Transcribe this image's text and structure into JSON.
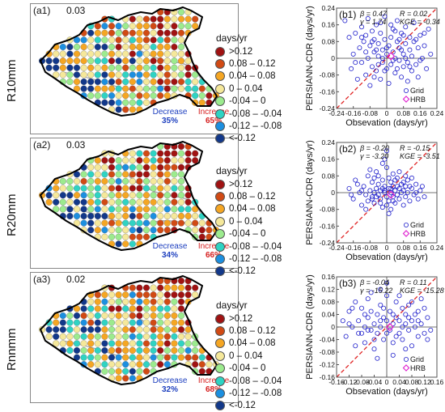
{
  "colors": {
    "scale": [
      "#a01212",
      "#d14a14",
      "#f5a623",
      "#f5e89a",
      "#9ceb8e",
      "#2fd3c3",
      "#1c8fe0",
      "#12388a"
    ],
    "grid_point": "#2222cc",
    "hrb_point": "#e020d0",
    "one_to_one": "#e02020",
    "basin_outline": "#000000",
    "rivers": "#aaaaaa"
  },
  "legend": {
    "title": "days/yr",
    "items": [
      ">0.12",
      "0.08 – 0.12",
      "0.04 – 0.08",
      "0 – 0.04",
      "-0.04 – 0",
      "-0.08 – -0.04",
      "-0.12 – -0.08",
      "<-0.12"
    ]
  },
  "maps": [
    {
      "label": "(a1)",
      "value": "0.03",
      "row_label": "R10mm",
      "decrease_label": "Decrease",
      "decrease_pct": "35%",
      "increase_label": "Increase",
      "increase_pct": "65%"
    },
    {
      "label": "(a2)",
      "value": "0.03",
      "row_label": "R20mm",
      "decrease_label": "Decrease",
      "decrease_pct": "34%",
      "increase_label": "Increase",
      "increase_pct": "66%"
    },
    {
      "label": "(a3)",
      "value": "0.02",
      "row_label": "Rnnmm",
      "decrease_label": "Decrease",
      "decrease_pct": "32%",
      "increase_label": "Increase",
      "increase_pct": "68%"
    }
  ],
  "chart_data": [
    {
      "type": "scatter",
      "label": "(b1)",
      "xlabel": "Obsevation (days/yr)",
      "ylabel": "PERSIANN-CDR (days/yr)",
      "xlim": [
        -0.24,
        0.24
      ],
      "ylim": [
        -0.24,
        0.24
      ],
      "xticks": [
        "-0.24",
        "-0.16",
        "-0.08",
        "0",
        "0.08",
        "0.16",
        "0.24"
      ],
      "yticks": [
        "0.24",
        "0.16",
        "0.08",
        "0",
        "-0.08",
        "-0.16",
        "-0.24"
      ],
      "stats_left": [
        "β = 0.47",
        "γ = 1.74"
      ],
      "stats_right": [
        "R = 0.02",
        "KGE = -0.34"
      ],
      "legend": [
        "Grid",
        "HRB"
      ],
      "hrb_point": [
        0.02,
        0.01
      ],
      "grid_points": [
        [
          -0.2,
          0.18
        ],
        [
          -0.18,
          0.1
        ],
        [
          -0.17,
          -0.05
        ],
        [
          -0.16,
          0.02
        ],
        [
          -0.15,
          0.12
        ],
        [
          -0.14,
          -0.1
        ],
        [
          -0.13,
          0.05
        ],
        [
          -0.12,
          0.15
        ],
        [
          -0.12,
          -0.02
        ],
        [
          -0.11,
          0.08
        ],
        [
          -0.1,
          -0.08
        ],
        [
          -0.1,
          0.11
        ],
        [
          -0.09,
          0.0
        ],
        [
          -0.09,
          0.19
        ],
        [
          -0.08,
          0.06
        ],
        [
          -0.08,
          -0.13
        ],
        [
          -0.07,
          0.13
        ],
        [
          -0.07,
          -0.04
        ],
        [
          -0.06,
          0.03
        ],
        [
          -0.06,
          0.09
        ],
        [
          -0.05,
          -0.06
        ],
        [
          -0.05,
          0.16
        ],
        [
          -0.04,
          0.01
        ],
        [
          -0.04,
          0.07
        ],
        [
          -0.03,
          -0.1
        ],
        [
          -0.03,
          0.12
        ],
        [
          -0.02,
          0.04
        ],
        [
          -0.02,
          -0.02
        ],
        [
          -0.01,
          0.09
        ],
        [
          -0.01,
          0.2
        ],
        [
          0.0,
          -0.05
        ],
        [
          0.0,
          0.02
        ],
        [
          0.01,
          0.06
        ],
        [
          0.01,
          -0.12
        ],
        [
          0.02,
          0.1
        ],
        [
          0.02,
          -0.03
        ],
        [
          0.03,
          0.03
        ],
        [
          0.03,
          0.14
        ],
        [
          0.04,
          -0.07
        ],
        [
          0.04,
          0.0
        ],
        [
          0.05,
          0.08
        ],
        [
          0.05,
          0.18
        ],
        [
          0.06,
          -0.01
        ],
        [
          0.06,
          0.05
        ],
        [
          0.07,
          -0.09
        ],
        [
          0.07,
          0.12
        ],
        [
          0.08,
          0.02
        ],
        [
          0.08,
          -0.04
        ],
        [
          0.09,
          0.07
        ],
        [
          0.09,
          0.15
        ],
        [
          0.1,
          -0.02
        ],
        [
          0.1,
          -0.11
        ],
        [
          0.11,
          0.04
        ],
        [
          0.11,
          0.1
        ],
        [
          0.12,
          -0.06
        ],
        [
          0.12,
          0.01
        ],
        [
          0.13,
          0.08
        ],
        [
          0.13,
          0.17
        ],
        [
          0.14,
          -0.03
        ],
        [
          0.15,
          0.05
        ],
        [
          0.15,
          -0.09
        ],
        [
          0.16,
          0.11
        ],
        [
          0.17,
          0.0
        ],
        [
          0.18,
          0.06
        ],
        [
          0.19,
          -0.05
        ],
        [
          0.2,
          0.14
        ],
        [
          0.21,
          0.02
        ],
        [
          -0.02,
          0.0
        ],
        [
          0.0,
          0.05
        ],
        [
          0.03,
          -0.01
        ],
        [
          -0.05,
          0.04
        ],
        [
          0.06,
          0.09
        ],
        [
          -0.01,
          -0.06
        ],
        [
          0.09,
          0.0
        ],
        [
          -0.07,
          0.08
        ],
        [
          0.04,
          0.13
        ],
        [
          0.11,
          -0.04
        ],
        [
          -0.1,
          0.03
        ],
        [
          0.14,
          0.09
        ],
        [
          -0.03,
          0.17
        ],
        [
          0.07,
          0.04
        ],
        [
          -0.06,
          -0.09
        ],
        [
          0.16,
          -0.01
        ],
        [
          0.02,
          0.16
        ],
        [
          -0.12,
          0.1
        ],
        [
          0.18,
          0.12
        ],
        [
          -0.04,
          -0.03
        ],
        [
          0.08,
          0.11
        ],
        [
          -0.15,
          -0.02
        ],
        [
          0.05,
          -0.05
        ]
      ]
    },
    {
      "type": "scatter",
      "label": "(b2)",
      "xlabel": "Obsevation (days/yr)",
      "ylabel": "PERSIANN-CDR (days/yr)",
      "xlim": [
        -0.24,
        0.24
      ],
      "ylim": [
        -0.24,
        0.24
      ],
      "xticks": [
        "-0.24",
        "-0.16",
        "-0.08",
        "0",
        "0.08",
        "0.16",
        "0.24"
      ],
      "yticks": [
        "0.24",
        "0.16",
        "0.08",
        "0",
        "-0.08",
        "-0.16",
        "-0.24"
      ],
      "stats_left": [
        "β = -0.20",
        "γ = -3.20"
      ],
      "stats_right": [
        "R = -0.15",
        "KGE = -3.51"
      ],
      "legend": [
        "Grid",
        "HRB"
      ],
      "hrb_point": [
        0.02,
        -0.01
      ],
      "grid_points": [
        [
          -0.18,
          0.02
        ],
        [
          -0.16,
          -0.03
        ],
        [
          -0.15,
          0.06
        ],
        [
          -0.13,
          0.0
        ],
        [
          -0.12,
          -0.06
        ],
        [
          -0.11,
          0.03
        ],
        [
          -0.1,
          -0.01
        ],
        [
          -0.09,
          0.08
        ],
        [
          -0.09,
          -0.04
        ],
        [
          -0.08,
          0.01
        ],
        [
          -0.07,
          -0.02
        ],
        [
          -0.07,
          0.05
        ],
        [
          -0.06,
          0.0
        ],
        [
          -0.06,
          -0.05
        ],
        [
          -0.05,
          0.02
        ],
        [
          -0.05,
          0.1
        ],
        [
          -0.04,
          -0.01
        ],
        [
          -0.04,
          0.04
        ],
        [
          -0.03,
          -0.03
        ],
        [
          -0.03,
          0.01
        ],
        [
          -0.02,
          0.06
        ],
        [
          -0.02,
          -0.07
        ],
        [
          -0.01,
          0.0
        ],
        [
          -0.01,
          0.03
        ],
        [
          0.0,
          -0.02
        ],
        [
          0.0,
          0.12
        ],
        [
          0.01,
          0.02
        ],
        [
          0.01,
          -0.04
        ],
        [
          0.02,
          0.05
        ],
        [
          0.02,
          0.0
        ],
        [
          0.03,
          -0.02
        ],
        [
          0.03,
          0.03
        ],
        [
          0.04,
          -0.05
        ],
        [
          0.04,
          0.01
        ],
        [
          0.05,
          0.07
        ],
        [
          0.05,
          -0.01
        ],
        [
          0.06,
          0.02
        ],
        [
          0.06,
          -0.03
        ],
        [
          0.07,
          0.0
        ],
        [
          0.07,
          0.04
        ],
        [
          0.08,
          -0.06
        ],
        [
          0.08,
          0.01
        ],
        [
          0.09,
          0.03
        ],
        [
          0.09,
          -0.02
        ],
        [
          0.1,
          0.06
        ],
        [
          0.1,
          0.0
        ],
        [
          0.11,
          -0.04
        ],
        [
          0.12,
          0.02
        ],
        [
          0.13,
          -0.01
        ],
        [
          0.14,
          0.04
        ],
        [
          0.15,
          -0.03
        ],
        [
          0.16,
          0.01
        ],
        [
          0.18,
          -0.02
        ],
        [
          -0.01,
          0.16
        ],
        [
          0.0,
          0.2
        ],
        [
          -0.02,
          0.14
        ],
        [
          0.01,
          -0.1
        ],
        [
          -0.04,
          0.08
        ],
        [
          0.03,
          0.09
        ],
        [
          -0.08,
          0.11
        ],
        [
          0.06,
          0.1
        ],
        [
          -0.14,
          0.04
        ],
        [
          0.12,
          0.07
        ],
        [
          -0.1,
          -0.08
        ],
        [
          0.02,
          -0.08
        ],
        [
          -0.06,
          0.07
        ],
        [
          0.04,
          0.06
        ],
        [
          -0.03,
          -0.05
        ],
        [
          0.08,
          0.05
        ],
        [
          -0.12,
          0.01
        ],
        [
          0.11,
          0.03
        ],
        [
          -0.07,
          -0.03
        ],
        [
          0.05,
          0.03
        ],
        [
          0.0,
          -0.06
        ],
        [
          -0.05,
          -0.02
        ],
        [
          0.09,
          0.08
        ],
        [
          0.14,
          0.0
        ],
        [
          -0.17,
          -0.01
        ],
        [
          0.17,
          0.03
        ],
        [
          -0.01,
          0.01
        ],
        [
          0.02,
          0.02
        ],
        [
          -0.02,
          0.02
        ],
        [
          0.03,
          -0.04
        ],
        [
          0.01,
          0.07
        ]
      ]
    },
    {
      "type": "scatter",
      "label": "(b3)",
      "xlabel": "Obsevation (days/yr)",
      "ylabel": "PERSIANN-CDR (days/yr)",
      "xlim": [
        -0.16,
        0.16
      ],
      "ylim": [
        -0.16,
        0.16
      ],
      "xticks": [
        "-0.16",
        "-0.12",
        "-0.08",
        "-0.04",
        "0",
        "0.04",
        "0.08",
        "0.12",
        "0.16"
      ],
      "yticks": [
        "0.16",
        "0.12",
        "0.08",
        "0.04",
        "0",
        "-0.04",
        "-0.08",
        "-0.12",
        "-0.16"
      ],
      "stats_left": [
        "β = -0.04",
        "γ = -15.22"
      ],
      "stats_right": [
        "R = 0.11",
        "KGE = -15.28"
      ],
      "legend": [
        "Grid",
        "HRB"
      ],
      "hrb_point": [
        0.01,
        0.0
      ],
      "grid_points": [
        [
          -0.14,
          0.02
        ],
        [
          -0.13,
          -0.03
        ],
        [
          -0.12,
          0.05
        ],
        [
          -0.11,
          0.0
        ],
        [
          -0.1,
          -0.06
        ],
        [
          -0.1,
          0.08
        ],
        [
          -0.09,
          0.02
        ],
        [
          -0.08,
          -0.02
        ],
        [
          -0.08,
          0.06
        ],
        [
          -0.07,
          0.0
        ],
        [
          -0.07,
          -0.05
        ],
        [
          -0.06,
          0.03
        ],
        [
          -0.06,
          0.09
        ],
        [
          -0.05,
          -0.01
        ],
        [
          -0.05,
          0.05
        ],
        [
          -0.04,
          0.01
        ],
        [
          -0.04,
          -0.07
        ],
        [
          -0.03,
          0.04
        ],
        [
          -0.03,
          -0.02
        ],
        [
          -0.02,
          0.07
        ],
        [
          -0.02,
          0.0
        ],
        [
          -0.01,
          0.03
        ],
        [
          -0.01,
          -0.04
        ],
        [
          0.0,
          0.02
        ],
        [
          0.0,
          0.1
        ],
        [
          0.01,
          -0.01
        ],
        [
          0.01,
          0.05
        ],
        [
          0.02,
          0.01
        ],
        [
          0.02,
          -0.05
        ],
        [
          0.03,
          0.03
        ],
        [
          0.03,
          0.08
        ],
        [
          0.04,
          -0.02
        ],
        [
          0.04,
          0.02
        ],
        [
          0.05,
          0.06
        ],
        [
          0.05,
          -0.04
        ],
        [
          0.06,
          0.01
        ],
        [
          0.06,
          0.04
        ],
        [
          0.07,
          -0.01
        ],
        [
          0.07,
          0.07
        ],
        [
          0.08,
          0.02
        ],
        [
          0.08,
          -0.06
        ],
        [
          0.09,
          0.04
        ],
        [
          0.09,
          0.0
        ],
        [
          0.1,
          0.05
        ],
        [
          0.1,
          -0.03
        ],
        [
          0.11,
          0.01
        ],
        [
          0.12,
          0.06
        ],
        [
          0.12,
          -0.02
        ],
        [
          0.13,
          0.03
        ],
        [
          0.14,
          -0.01
        ],
        [
          -0.02,
          0.12
        ],
        [
          0.0,
          0.14
        ],
        [
          0.02,
          -0.09
        ],
        [
          -0.05,
          0.11
        ],
        [
          0.04,
          0.1
        ],
        [
          -0.09,
          -0.02
        ],
        [
          0.06,
          -0.07
        ],
        [
          -0.12,
          0.01
        ],
        [
          0.11,
          0.09
        ],
        [
          -0.03,
          -0.1
        ],
        [
          0.08,
          0.08
        ],
        [
          -0.07,
          0.04
        ],
        [
          0.03,
          -0.03
        ],
        [
          -0.01,
          0.06
        ],
        [
          0.05,
          0.0
        ],
        [
          -0.04,
          -0.04
        ],
        [
          0.1,
          0.02
        ],
        [
          -0.11,
          0.06
        ],
        [
          0.13,
          -0.04
        ],
        [
          -0.06,
          -0.01
        ],
        [
          0.02,
          0.04
        ],
        [
          0.0,
          -0.02
        ],
        [
          -0.02,
          0.02
        ],
        [
          0.07,
          0.03
        ]
      ]
    }
  ]
}
